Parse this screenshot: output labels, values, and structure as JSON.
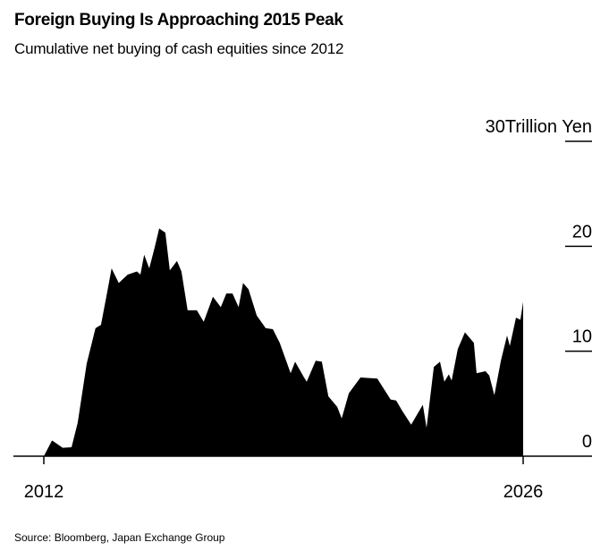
{
  "chart_data": {
    "type": "area",
    "title": "Foreign Buying Is Approaching 2015 Peak",
    "subtitle": "Cumulative net buying of cash equities since 2012",
    "ylabel_unit": "Trillion Yen",
    "ylim": [
      0,
      30
    ],
    "yticks": [
      "0",
      "10",
      "20",
      "30"
    ],
    "xlim": [
      2012,
      2026
    ],
    "xticks": [
      "2012",
      "2026"
    ],
    "fill_color": "#000000",
    "grid": false,
    "source": "Source: Bloomberg, Japan Exchange Group",
    "series": [
      {
        "x": [
          2012.0,
          2012.24,
          2012.55,
          2012.81,
          2012.99,
          2013.25,
          2013.51,
          2013.67,
          2013.85,
          2013.98,
          2014.19,
          2014.45,
          2014.72,
          2014.82,
          2014.93,
          2015.08,
          2015.24,
          2015.37,
          2015.55,
          2015.68,
          2015.89,
          2016.02,
          2016.2,
          2016.47,
          2016.67,
          2016.94,
          2017.17,
          2017.33,
          2017.51,
          2017.69,
          2017.82,
          2017.98,
          2018.22,
          2018.48,
          2018.69,
          2018.89,
          2019.21,
          2019.34,
          2019.6,
          2019.68,
          2019.94,
          2020.12,
          2020.31,
          2020.57,
          2020.7,
          2020.91,
          2021.25,
          2021.74,
          2022.13,
          2022.29,
          2022.47,
          2022.73,
          2023.07,
          2023.18,
          2023.39,
          2023.57,
          2023.7,
          2023.83,
          2023.91,
          2024.09,
          2024.3,
          2024.56,
          2024.64,
          2024.9,
          2025.01,
          2025.16,
          2025.35,
          2025.53,
          2025.61,
          2025.79,
          2025.92,
          2026.0
        ],
        "y": [
          0,
          1.5,
          0.8,
          0.85,
          3.2,
          8.8,
          12.2,
          12.5,
          15.6,
          17.9,
          16.5,
          17.3,
          17.6,
          17.3,
          19.2,
          17.9,
          19.9,
          21.7,
          21.3,
          17.7,
          18.6,
          17.6,
          13.9,
          13.9,
          12.8,
          15.2,
          14.2,
          15.5,
          15.5,
          14.2,
          16.5,
          15.9,
          13.4,
          12.2,
          12.1,
          10.8,
          7.9,
          9.0,
          7.5,
          7.1,
          9.1,
          9.0,
          5.7,
          4.7,
          3.6,
          6.0,
          7.5,
          7.4,
          5.4,
          5.3,
          4.3,
          3.0,
          4.9,
          2.7,
          8.5,
          9.0,
          7.1,
          7.8,
          7.2,
          10.2,
          11.8,
          10.8,
          7.9,
          8.1,
          7.7,
          5.8,
          9.1,
          11.5,
          10.5,
          13.2,
          13.0,
          14.7
        ]
      }
    ]
  }
}
